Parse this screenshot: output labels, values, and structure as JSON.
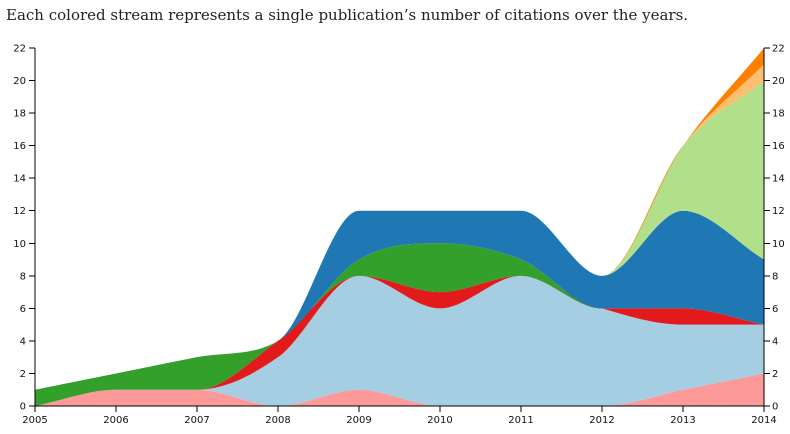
{
  "caption": "Each colored stream represents a single publication’s number of citations over the years.",
  "chart_data": {
    "type": "area",
    "stacked": true,
    "x": [
      2005,
      2006,
      2007,
      2008,
      2009,
      2010,
      2011,
      2012,
      2013,
      2014
    ],
    "ylim": [
      0,
      22
    ],
    "y_ticks": [
      0,
      2,
      4,
      6,
      8,
      10,
      12,
      14,
      16,
      18,
      20,
      22
    ],
    "x_tick_labels": [
      "2005",
      "2006",
      "2007",
      "2008",
      "2009",
      "2010",
      "2011",
      "2012",
      "2013",
      "2014"
    ],
    "grid": false,
    "legend": "none",
    "series": [
      {
        "color": "#fb9a99",
        "values": [
          0,
          1,
          1,
          0,
          1,
          0,
          0,
          0,
          1,
          2
        ]
      },
      {
        "color": "#a6cee3",
        "values": [
          0,
          0,
          0,
          3,
          7,
          6,
          8,
          6,
          4,
          3
        ]
      },
      {
        "color": "#e31a1c",
        "values": [
          0,
          0,
          0,
          1,
          0,
          1,
          0,
          0,
          1,
          0
        ]
      },
      {
        "color": "#33a02c",
        "values": [
          1,
          1,
          2,
          0,
          1,
          3,
          1,
          0,
          0,
          0
        ]
      },
      {
        "color": "#1f78b4",
        "values": [
          0,
          0,
          0,
          0,
          3,
          2,
          3,
          2,
          6,
          4
        ]
      },
      {
        "color": "#b2df8a",
        "values": [
          0,
          0,
          0,
          0,
          0,
          0,
          0,
          0,
          4,
          11
        ]
      },
      {
        "color": "#fdbf6f",
        "values": [
          0,
          0,
          0,
          0,
          0,
          0,
          0,
          0,
          0,
          1
        ]
      },
      {
        "color": "#ff7f00",
        "values": [
          0,
          0,
          0,
          0,
          0,
          0,
          0,
          0,
          0,
          1
        ]
      }
    ]
  }
}
